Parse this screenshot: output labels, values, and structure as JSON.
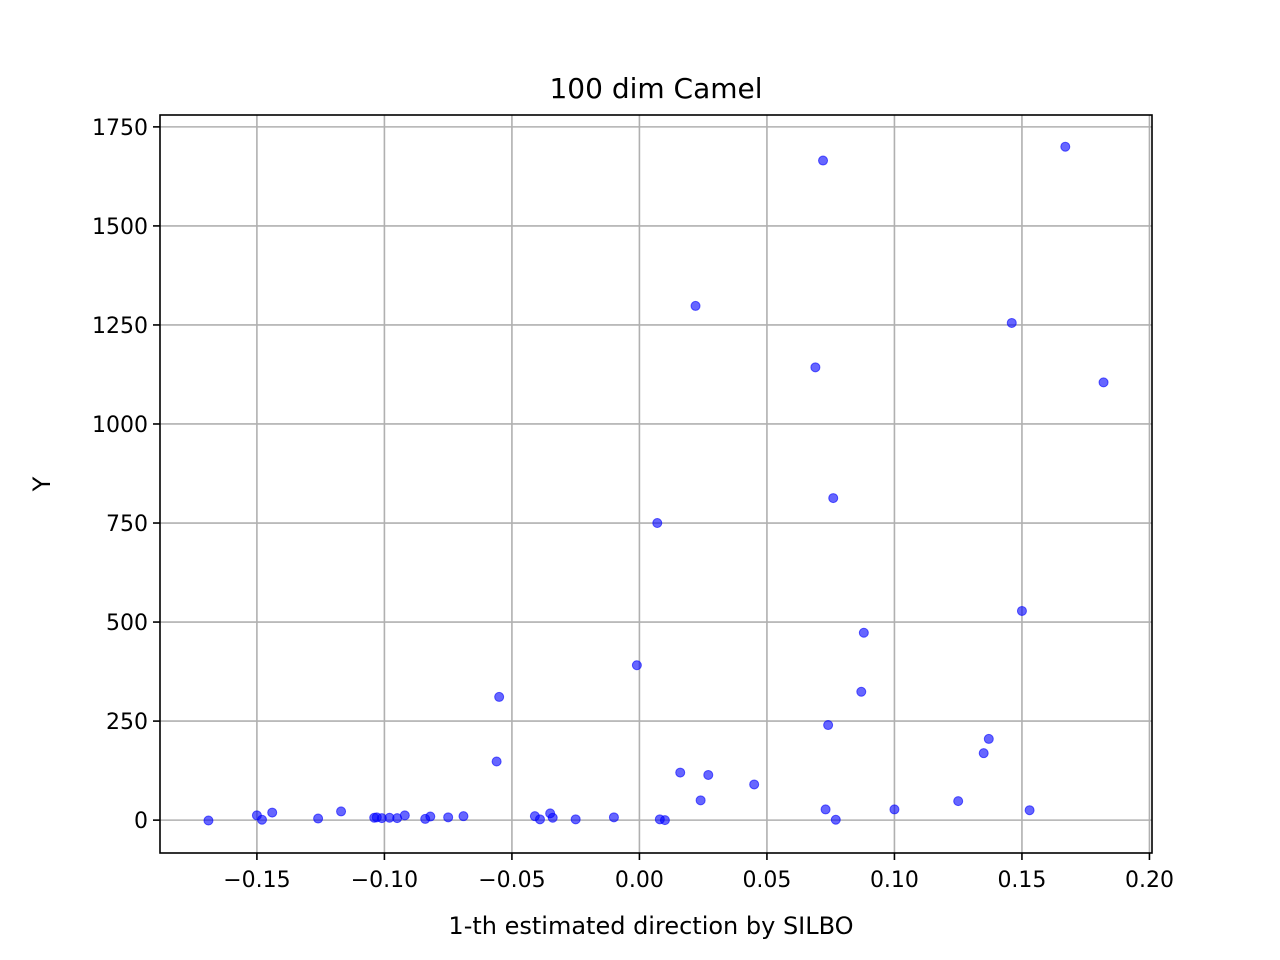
{
  "chart_data": {
    "type": "scatter",
    "title": "100 dim Camel",
    "xlabel": "1-th estimated direction by SILBO",
    "ylabel": "Y",
    "xlim": [
      -0.188,
      0.201
    ],
    "ylim": [
      -83,
      1780
    ],
    "x_ticks": [
      -0.15,
      -0.1,
      -0.05,
      0.0,
      0.05,
      0.1,
      0.15,
      0.2
    ],
    "x_tick_labels": [
      "−0.15",
      "−0.10",
      "−0.05",
      "0.00",
      "0.05",
      "0.10",
      "0.15",
      "0.20"
    ],
    "y_ticks": [
      0,
      250,
      500,
      750,
      1000,
      1250,
      1500,
      1750
    ],
    "y_tick_labels": [
      "0",
      "250",
      "500",
      "750",
      "1000",
      "1250",
      "1500",
      "1750"
    ],
    "grid": true,
    "marker_color": "#0000ff",
    "marker_alpha": 0.6,
    "points": [
      {
        "x": -0.169,
        "y": -1
      },
      {
        "x": -0.15,
        "y": 12
      },
      {
        "x": -0.148,
        "y": 1
      },
      {
        "x": -0.144,
        "y": 19
      },
      {
        "x": -0.126,
        "y": 4
      },
      {
        "x": -0.117,
        "y": 22
      },
      {
        "x": -0.104,
        "y": 6
      },
      {
        "x": -0.103,
        "y": 7
      },
      {
        "x": -0.101,
        "y": 5
      },
      {
        "x": -0.098,
        "y": 6
      },
      {
        "x": -0.095,
        "y": 5
      },
      {
        "x": -0.092,
        "y": 12
      },
      {
        "x": -0.084,
        "y": 3
      },
      {
        "x": -0.082,
        "y": 9
      },
      {
        "x": -0.075,
        "y": 7
      },
      {
        "x": -0.069,
        "y": 10
      },
      {
        "x": -0.056,
        "y": 148
      },
      {
        "x": -0.055,
        "y": 311
      },
      {
        "x": -0.041,
        "y": 10
      },
      {
        "x": -0.039,
        "y": 2
      },
      {
        "x": -0.035,
        "y": 17
      },
      {
        "x": -0.034,
        "y": 6
      },
      {
        "x": -0.025,
        "y": 2
      },
      {
        "x": -0.01,
        "y": 7
      },
      {
        "x": -0.001,
        "y": 391
      },
      {
        "x": 0.007,
        "y": 750
      },
      {
        "x": 0.008,
        "y": 2
      },
      {
        "x": 0.01,
        "y": 0
      },
      {
        "x": 0.016,
        "y": 120
      },
      {
        "x": 0.022,
        "y": 1298
      },
      {
        "x": 0.024,
        "y": 50
      },
      {
        "x": 0.027,
        "y": 114
      },
      {
        "x": 0.045,
        "y": 90
      },
      {
        "x": 0.069,
        "y": 1143
      },
      {
        "x": 0.072,
        "y": 1665
      },
      {
        "x": 0.073,
        "y": 27
      },
      {
        "x": 0.074,
        "y": 240
      },
      {
        "x": 0.076,
        "y": 813
      },
      {
        "x": 0.077,
        "y": 1
      },
      {
        "x": 0.087,
        "y": 324
      },
      {
        "x": 0.088,
        "y": 473
      },
      {
        "x": 0.1,
        "y": 27
      },
      {
        "x": 0.125,
        "y": 48
      },
      {
        "x": 0.135,
        "y": 169
      },
      {
        "x": 0.137,
        "y": 205
      },
      {
        "x": 0.146,
        "y": 1255
      },
      {
        "x": 0.15,
        "y": 528
      },
      {
        "x": 0.153,
        "y": 25
      },
      {
        "x": 0.167,
        "y": 1700
      },
      {
        "x": 0.182,
        "y": 1105
      }
    ]
  }
}
